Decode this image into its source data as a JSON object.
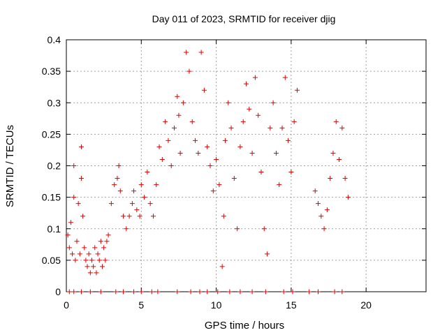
{
  "chart_data": {
    "type": "scatter",
    "title": "Day 011 of 2023, SRMTID for receiver djig",
    "xlabel": "GPS time / hours",
    "ylabel": "SRMTID / TECUs",
    "xlim": [
      0,
      24
    ],
    "ylim": [
      0,
      0.4
    ],
    "x_ticks": [
      0,
      5,
      10,
      15,
      20
    ],
    "y_ticks": [
      0,
      0.05,
      0.1,
      0.15,
      0.2,
      0.25,
      0.3,
      0.35,
      0.4
    ],
    "x_tick_labels": [
      "0",
      "5",
      "10",
      "15",
      "20"
    ],
    "y_tick_labels": [
      "0",
      "0.05",
      "0.1",
      "0.15",
      "0.2",
      "0.25",
      "0.3",
      "0.35",
      "0.4"
    ],
    "grid": true,
    "marker": "+",
    "color": "#e00000",
    "series": [
      {
        "values": [
          [
            0.1,
            0.09
          ],
          [
            0.2,
            0.07
          ],
          [
            0.3,
            0.11
          ],
          [
            0.4,
            0.06
          ],
          [
            0.5,
            0.2
          ],
          [
            0.5,
            0.15
          ],
          [
            0.6,
            0.05
          ],
          [
            0.7,
            0.08
          ],
          [
            0.8,
            0.14
          ],
          [
            0.9,
            0.06
          ],
          [
            1.0,
            0.23
          ],
          [
            1.0,
            0.18
          ],
          [
            1.1,
            0.12
          ],
          [
            1.2,
            0.07
          ],
          [
            1.3,
            0.05
          ],
          [
            1.4,
            0.04
          ],
          [
            1.5,
            0.06
          ],
          [
            1.6,
            0.03
          ],
          [
            1.7,
            0.05
          ],
          [
            1.8,
            0.04
          ],
          [
            1.9,
            0.07
          ],
          [
            2.0,
            0.03
          ],
          [
            2.1,
            0.06
          ],
          [
            2.2,
            0.05
          ],
          [
            2.3,
            0.08
          ],
          [
            2.4,
            0.04
          ],
          [
            2.5,
            0.07
          ],
          [
            2.6,
            0.05
          ],
          [
            2.7,
            0.08
          ],
          [
            2.8,
            0.09
          ],
          [
            3.0,
            0.14
          ],
          [
            3.2,
            0.17
          ],
          [
            3.4,
            0.18
          ],
          [
            3.5,
            0.2
          ],
          [
            3.6,
            0.16
          ],
          [
            3.8,
            0.12
          ],
          [
            4.0,
            0.1
          ],
          [
            4.2,
            0.12
          ],
          [
            4.4,
            0.14
          ],
          [
            4.5,
            0.16
          ],
          [
            4.7,
            0.13
          ],
          [
            4.9,
            0.12
          ],
          [
            5.0,
            0.17
          ],
          [
            5.2,
            0.15
          ],
          [
            5.4,
            0.19
          ],
          [
            5.6,
            0.14
          ],
          [
            5.8,
            0.12
          ],
          [
            6.0,
            0.17
          ],
          [
            6.2,
            0.23
          ],
          [
            6.4,
            0.21
          ],
          [
            6.6,
            0.27
          ],
          [
            6.8,
            0.24
          ],
          [
            7.0,
            0.2
          ],
          [
            7.2,
            0.26
          ],
          [
            7.4,
            0.31
          ],
          [
            7.5,
            0.28
          ],
          [
            7.6,
            0.22
          ],
          [
            7.8,
            0.3
          ],
          [
            8.0,
            0.38
          ],
          [
            8.2,
            0.35
          ],
          [
            8.4,
            0.27
          ],
          [
            8.6,
            0.24
          ],
          [
            8.8,
            0.22
          ],
          [
            9.0,
            0.38
          ],
          [
            9.2,
            0.32
          ],
          [
            9.4,
            0.23
          ],
          [
            9.6,
            0.2
          ],
          [
            9.8,
            0.16
          ],
          [
            10.0,
            0.21
          ],
          [
            10.2,
            0.17
          ],
          [
            10.4,
            0.04
          ],
          [
            10.5,
            0.12
          ],
          [
            10.6,
            0.24
          ],
          [
            10.8,
            0.3
          ],
          [
            11.0,
            0.26
          ],
          [
            11.2,
            0.18
          ],
          [
            11.4,
            0.1
          ],
          [
            11.6,
            0.23
          ],
          [
            11.8,
            0.27
          ],
          [
            12.0,
            0.33
          ],
          [
            12.2,
            0.29
          ],
          [
            12.4,
            0.22
          ],
          [
            12.6,
            0.34
          ],
          [
            12.8,
            0.28
          ],
          [
            13.0,
            0.19
          ],
          [
            13.2,
            0.1
          ],
          [
            13.4,
            0.06
          ],
          [
            13.6,
            0.26
          ],
          [
            13.8,
            0.3
          ],
          [
            14.0,
            0.22
          ],
          [
            14.2,
            0.17
          ],
          [
            14.4,
            0.26
          ],
          [
            14.6,
            0.34
          ],
          [
            14.8,
            0.24
          ],
          [
            15.0,
            0.19
          ],
          [
            15.2,
            0.27
          ],
          [
            15.4,
            0.32
          ],
          [
            16.6,
            0.16
          ],
          [
            16.8,
            0.14
          ],
          [
            17.0,
            0.12
          ],
          [
            17.2,
            0.1
          ],
          [
            17.4,
            0.13
          ],
          [
            17.6,
            0.18
          ],
          [
            17.8,
            0.22
          ],
          [
            18.0,
            0.27
          ],
          [
            18.2,
            0.21
          ],
          [
            18.4,
            0.26
          ],
          [
            18.6,
            0.18
          ],
          [
            18.8,
            0.15
          ],
          [
            0.2,
            0
          ],
          [
            0.5,
            0
          ],
          [
            1.0,
            0
          ],
          [
            1.6,
            0
          ],
          [
            2.3,
            0
          ],
          [
            3.3,
            0
          ],
          [
            3.8,
            0
          ],
          [
            4.5,
            0
          ],
          [
            5.0,
            0
          ],
          [
            5.7,
            0
          ],
          [
            6.1,
            0
          ],
          [
            7.4,
            0
          ],
          [
            8.3,
            0
          ],
          [
            8.9,
            0
          ],
          [
            9.4,
            0
          ],
          [
            10.1,
            0
          ],
          [
            10.9,
            0
          ],
          [
            11.6,
            0
          ],
          [
            12.4,
            0
          ],
          [
            13.3,
            0
          ],
          [
            14.5,
            0
          ],
          [
            15.1,
            0
          ],
          [
            16.2,
            0
          ],
          [
            16.8,
            0
          ],
          [
            17.9,
            0
          ],
          [
            18.4,
            0
          ]
        ]
      }
    ]
  }
}
